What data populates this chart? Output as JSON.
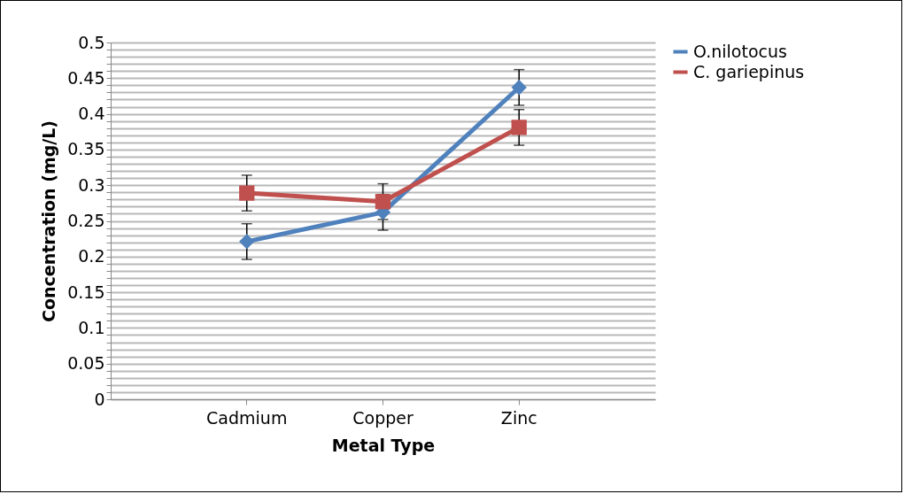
{
  "chart_data": {
    "type": "line",
    "xlabel": "Metal Type",
    "ylabel": "Concentration (mg/L)",
    "categories": [
      "Cadmium",
      "Copper",
      "Zinc"
    ],
    "series": [
      {
        "name": "O.nilotocus",
        "color": "#4f81bd",
        "marker": "diamond",
        "values": [
          0.221,
          0.262,
          0.437
        ],
        "errors": [
          0.025,
          0.025,
          0.025
        ]
      },
      {
        "name": "C. gariepinus",
        "color": "#c0504d",
        "marker": "square",
        "values": [
          0.289,
          0.277,
          0.381
        ],
        "errors": [
          0.025,
          0.025,
          0.025
        ]
      }
    ],
    "ylim": [
      0,
      0.5
    ],
    "yticks": [
      0,
      {
        "value": 0.01,
        "label": null
      },
      {
        "value": 0.02,
        "label": null
      },
      {
        "value": 0.03,
        "label": null
      },
      {
        "value": 0.04,
        "label": null
      },
      0.05,
      {
        "value": 0.06,
        "label": null
      },
      {
        "value": 0.07,
        "label": null
      },
      {
        "value": 0.08,
        "label": null
      },
      {
        "value": 0.09,
        "label": null
      },
      0.1,
      {
        "value": 0.11,
        "label": null
      },
      {
        "value": 0.12,
        "label": null
      },
      {
        "value": 0.13,
        "label": null
      },
      {
        "value": 0.14,
        "label": null
      },
      0.15,
      {
        "value": 0.16,
        "label": null
      },
      {
        "value": 0.17,
        "label": null
      },
      {
        "value": 0.18,
        "label": null
      },
      {
        "value": 0.19,
        "label": null
      },
      0.2,
      {
        "value": 0.21,
        "label": null
      },
      {
        "value": 0.22,
        "label": null
      },
      {
        "value": 0.23,
        "label": null
      },
      {
        "value": 0.24,
        "label": null
      },
      0.25,
      {
        "value": 0.26,
        "label": null
      },
      {
        "value": 0.27,
        "label": null
      },
      {
        "value": 0.28,
        "label": null
      },
      {
        "value": 0.29,
        "label": null
      },
      0.3,
      {
        "value": 0.31,
        "label": null
      },
      {
        "value": 0.32,
        "label": null
      },
      {
        "value": 0.33,
        "label": null
      },
      {
        "value": 0.34,
        "label": null
      },
      0.35,
      {
        "value": 0.36,
        "label": null
      },
      {
        "value": 0.37,
        "label": null
      },
      {
        "value": 0.38,
        "label": null
      },
      {
        "value": 0.39,
        "label": null
      },
      0.4,
      {
        "value": 0.41,
        "label": null
      },
      {
        "value": 0.42,
        "label": null
      },
      {
        "value": 0.43,
        "label": null
      },
      {
        "value": 0.44,
        "label": null
      },
      0.45,
      {
        "value": 0.46,
        "label": null
      },
      {
        "value": 0.47,
        "label": null
      },
      {
        "value": 0.48,
        "label": null
      },
      {
        "value": 0.49,
        "label": null
      },
      0.5
    ],
    "grid": true,
    "legend": "right",
    "line_style": "solid"
  }
}
